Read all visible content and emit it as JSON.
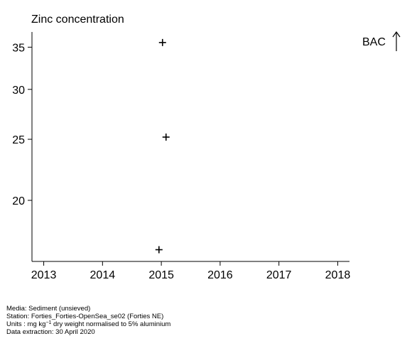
{
  "chart_data": {
    "type": "scatter",
    "title": "Zinc concentration",
    "xlabel": "",
    "ylabel": "",
    "x_ticks": [
      "2013",
      "2014",
      "2015",
      "2016",
      "2017",
      "2018"
    ],
    "y_ticks": [
      "20",
      "25",
      "30",
      "35"
    ],
    "y_scale": "log",
    "xlim": [
      2012.8,
      2018.2
    ],
    "ylim": [
      16.0,
      37.0
    ],
    "points": [
      {
        "x": 2015.02,
        "y": 35.6
      },
      {
        "x": 2015.08,
        "y": 25.2
      },
      {
        "x": 2014.96,
        "y": 16.7
      }
    ],
    "marker": "+",
    "grid": false,
    "annotation": {
      "label": "BAC",
      "symbol": "arrow-up-icon"
    }
  },
  "footer": {
    "media": "Media: Sediment (unsieved)",
    "station": "Station: Forties_Forties-OpenSea_se02 (Forties NE)",
    "units_prefix": "Units : mg kg",
    "units_exp": "−1",
    "units_suffix": " dry weight normalised to 5% aluminium",
    "extraction": "Data extraction: 30 April 2020"
  }
}
